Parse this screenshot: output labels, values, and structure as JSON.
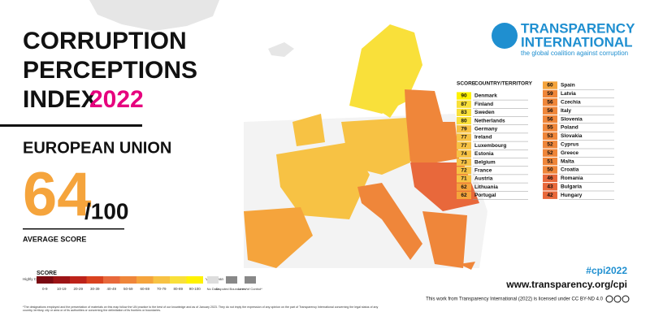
{
  "header": {
    "title_lines": [
      "CORRUPTION",
      "PERCEPTIONS",
      "INDEX"
    ],
    "year": "2022",
    "region": "EUROPEAN UNION",
    "average": "64",
    "out_of": "/100",
    "average_label": "AVERAGE SCORE"
  },
  "logo": {
    "line1": "TRANSPARENCY",
    "line2": "INTERNATIONAL",
    "tagline": "the global coalition against corruption"
  },
  "table": {
    "headers": [
      "SCORE",
      "COUNTRY/TERRITORY"
    ],
    "left": [
      {
        "score": "90",
        "country": "Denmark",
        "color": "#fff200"
      },
      {
        "score": "87",
        "country": "Finland",
        "color": "#f9e03a"
      },
      {
        "score": "83",
        "country": "Sweden",
        "color": "#f9e03a"
      },
      {
        "score": "80",
        "country": "Netherlands",
        "color": "#f9e03a"
      },
      {
        "score": "79",
        "country": "Germany",
        "color": "#f7c244"
      },
      {
        "score": "77",
        "country": "Ireland",
        "color": "#f7c244"
      },
      {
        "score": "77",
        "country": "Luxembourg",
        "color": "#f7c244"
      },
      {
        "score": "74",
        "country": "Estonia",
        "color": "#f7c244"
      },
      {
        "score": "73",
        "country": "Belgium",
        "color": "#f7c244"
      },
      {
        "score": "72",
        "country": "France",
        "color": "#f7c244"
      },
      {
        "score": "71",
        "country": "Austria",
        "color": "#f7c244"
      },
      {
        "score": "62",
        "country": "Lithuania",
        "color": "#f5a43c"
      },
      {
        "score": "62",
        "country": "Portugal",
        "color": "#f5a43c"
      }
    ],
    "right": [
      {
        "score": "60",
        "country": "Spain",
        "color": "#f5a43c"
      },
      {
        "score": "59",
        "country": "Latvia",
        "color": "#ef863a"
      },
      {
        "score": "56",
        "country": "Czechia",
        "color": "#ef863a"
      },
      {
        "score": "56",
        "country": "Italy",
        "color": "#ef863a"
      },
      {
        "score": "56",
        "country": "Slovenia",
        "color": "#ef863a"
      },
      {
        "score": "55",
        "country": "Poland",
        "color": "#ef863a"
      },
      {
        "score": "53",
        "country": "Slovakia",
        "color": "#ef863a"
      },
      {
        "score": "52",
        "country": "Cyprus",
        "color": "#ef863a"
      },
      {
        "score": "52",
        "country": "Greece",
        "color": "#ef863a"
      },
      {
        "score": "51",
        "country": "Malta",
        "color": "#ef863a"
      },
      {
        "score": "50",
        "country": "Croatia",
        "color": "#ef863a"
      },
      {
        "score": "46",
        "country": "Romania",
        "color": "#e8683b"
      },
      {
        "score": "43",
        "country": "Bulgaria",
        "color": "#e8683b"
      },
      {
        "score": "42",
        "country": "Hungary",
        "color": "#e8683b"
      }
    ]
  },
  "legend": {
    "title": "SCORE",
    "low_label": "Highly Corrupt",
    "high_label": "Very Clean",
    "bins": [
      {
        "label": "0-9",
        "color": "#7a0a12"
      },
      {
        "label": "10-19",
        "color": "#9c1416"
      },
      {
        "label": "20-29",
        "color": "#bd231a"
      },
      {
        "label": "30-39",
        "color": "#d9421f"
      },
      {
        "label": "40-49",
        "color": "#e8683b"
      },
      {
        "label": "50-59",
        "color": "#ef863a"
      },
      {
        "label": "60-69",
        "color": "#f5a43c"
      },
      {
        "label": "70-79",
        "color": "#f7c244"
      },
      {
        "label": "80-89",
        "color": "#f9e03a"
      },
      {
        "label": "90-100",
        "color": "#fff200"
      }
    ],
    "extras": [
      "No Data",
      "Disputed Boundaries*",
      "Lines of Control*"
    ]
  },
  "footer": {
    "hashtag": "#cpi2022",
    "url": "www.transparency.org/cpi",
    "license": "This work from Transparency International (2022) is licensed under CC BY-ND 4.0",
    "disclaimer": "*The designations employed and the presentation of materials on this map follow the UN practice to the best of our knowledge and as of January 2023. They do not imply the expression of any opinion on the part of Transparency International concerning the legal status of any country, territory, city or area or of its authorities or concerning the delimitation of its frontiers or boundaries."
  }
}
